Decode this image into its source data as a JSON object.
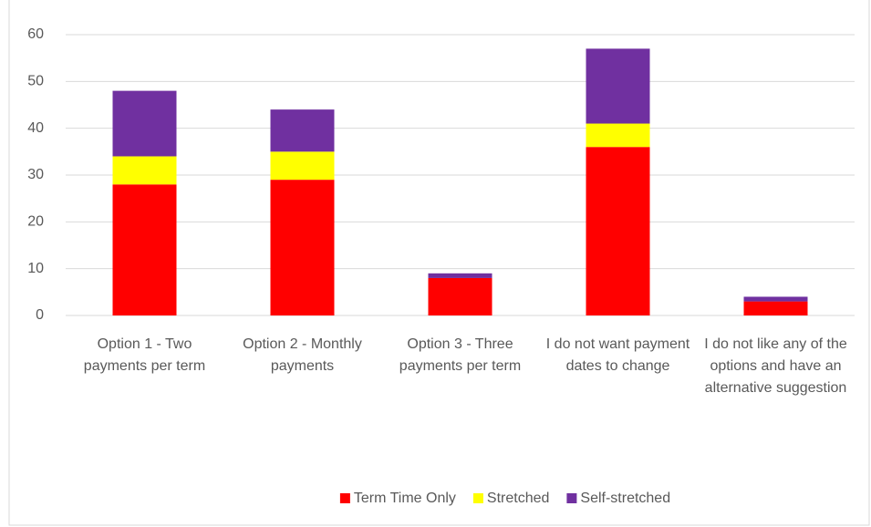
{
  "chart_data": {
    "type": "stacked_bar",
    "categories": [
      "Option 1 - Two payments per term",
      "Option 2 - Monthly payments",
      "Option 3 - Three payments per term",
      "I do not want payment dates to change",
      "I do not like any of the options and have an alternative suggestion"
    ],
    "series": [
      {
        "name": "Term Time Only",
        "color": "#ff0000",
        "values": [
          28,
          29,
          8,
          36,
          3
        ]
      },
      {
        "name": "Stretched",
        "color": "#ffff00",
        "values": [
          6,
          6,
          0,
          5,
          0
        ]
      },
      {
        "name": "Self-stretched",
        "color": "#7030a0",
        "values": [
          14,
          9,
          1,
          16,
          1
        ]
      }
    ],
    "ylim": [
      0,
      60
    ],
    "yticks": [
      0,
      10,
      20,
      30,
      40,
      50,
      60
    ],
    "grid": true,
    "legend": "bottom"
  }
}
